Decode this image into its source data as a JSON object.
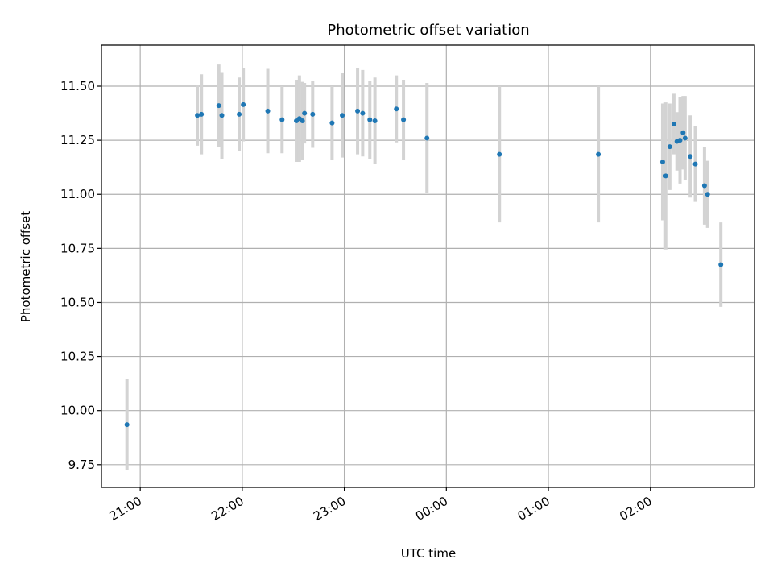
{
  "chart_data": {
    "type": "scatter",
    "title": "Photometric offset variation",
    "xlabel": "UTC time",
    "ylabel": "Photometric offset",
    "grid": true,
    "xlim_hours": [
      20.62,
      27.02
    ],
    "ylim": [
      9.645,
      11.69
    ],
    "x_ticks": [
      {
        "value": 21,
        "label": "21:00"
      },
      {
        "value": 22,
        "label": "22:00"
      },
      {
        "value": 23,
        "label": "23:00"
      },
      {
        "value": 24,
        "label": "00:00"
      },
      {
        "value": 25,
        "label": "01:00"
      },
      {
        "value": 26,
        "label": "02:00"
      }
    ],
    "y_ticks": [
      {
        "value": 9.75,
        "label": "9.75"
      },
      {
        "value": 10.0,
        "label": "10.00"
      },
      {
        "value": 10.25,
        "label": "10.25"
      },
      {
        "value": 10.5,
        "label": "10.50"
      },
      {
        "value": 10.75,
        "label": "10.75"
      },
      {
        "value": 11.0,
        "label": "11.00"
      },
      {
        "value": 11.25,
        "label": "11.25"
      },
      {
        "value": 11.5,
        "label": "11.50"
      }
    ],
    "point_color": "#1f77b4",
    "errorbar_color": "#d3d3d3",
    "points": [
      {
        "t": 20.87,
        "y": 9.935,
        "err": 0.21
      },
      {
        "t": 21.56,
        "y": 11.365,
        "err": 0.14
      },
      {
        "t": 21.6,
        "y": 11.37,
        "err": 0.185
      },
      {
        "t": 21.77,
        "y": 11.41,
        "err": 0.19
      },
      {
        "t": 21.8,
        "y": 11.365,
        "err": 0.2
      },
      {
        "t": 21.97,
        "y": 11.37,
        "err": 0.17
      },
      {
        "t": 22.01,
        "y": 11.415,
        "err": 0.17
      },
      {
        "t": 22.25,
        "y": 11.385,
        "err": 0.195
      },
      {
        "t": 22.39,
        "y": 11.345,
        "err": 0.155
      },
      {
        "t": 22.53,
        "y": 11.34,
        "err": 0.19
      },
      {
        "t": 22.56,
        "y": 11.35,
        "err": 0.2
      },
      {
        "t": 22.59,
        "y": 11.34,
        "err": 0.18
      },
      {
        "t": 22.61,
        "y": 11.375,
        "err": 0.14
      },
      {
        "t": 22.69,
        "y": 11.37,
        "err": 0.155
      },
      {
        "t": 22.88,
        "y": 11.33,
        "err": 0.17
      },
      {
        "t": 22.98,
        "y": 11.365,
        "err": 0.195
      },
      {
        "t": 23.13,
        "y": 11.385,
        "err": 0.2
      },
      {
        "t": 23.18,
        "y": 11.375,
        "err": 0.2
      },
      {
        "t": 23.25,
        "y": 11.345,
        "err": 0.18
      },
      {
        "t": 23.3,
        "y": 11.34,
        "err": 0.2
      },
      {
        "t": 23.51,
        "y": 11.395,
        "err": 0.155
      },
      {
        "t": 23.58,
        "y": 11.345,
        "err": 0.185
      },
      {
        "t": 23.81,
        "y": 11.26,
        "err": 0.255
      },
      {
        "t": 24.52,
        "y": 11.185,
        "err": 0.315
      },
      {
        "t": 25.49,
        "y": 11.185,
        "err": 0.315
      },
      {
        "t": 26.12,
        "y": 11.15,
        "err": 0.27
      },
      {
        "t": 26.15,
        "y": 11.085,
        "err": 0.34
      },
      {
        "t": 26.19,
        "y": 11.22,
        "err": 0.2
      },
      {
        "t": 26.23,
        "y": 11.325,
        "err": 0.14
      },
      {
        "t": 26.26,
        "y": 11.245,
        "err": 0.135
      },
      {
        "t": 26.29,
        "y": 11.25,
        "err": 0.2
      },
      {
        "t": 26.32,
        "y": 11.285,
        "err": 0.17
      },
      {
        "t": 26.34,
        "y": 11.26,
        "err": 0.195
      },
      {
        "t": 26.39,
        "y": 11.175,
        "err": 0.19
      },
      {
        "t": 26.44,
        "y": 11.14,
        "err": 0.175
      },
      {
        "t": 26.53,
        "y": 11.04,
        "err": 0.18
      },
      {
        "t": 26.56,
        "y": 11.0,
        "err": 0.155
      },
      {
        "t": 26.69,
        "y": 10.675,
        "err": 0.195
      }
    ]
  }
}
